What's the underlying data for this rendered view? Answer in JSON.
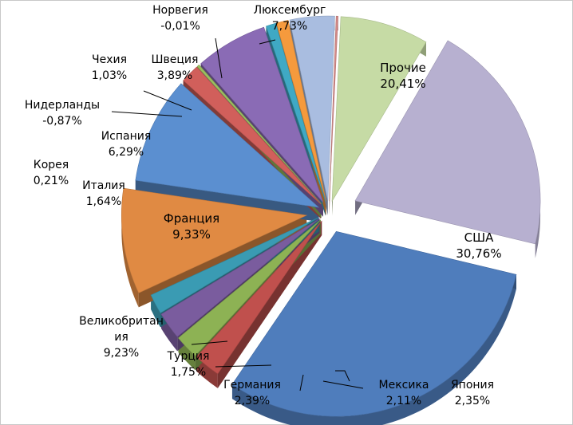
{
  "chart_data": {
    "type": "pie",
    "style": "3d-exploded",
    "title": "",
    "legend": "none",
    "slices": [
      {
        "name": "Прочие",
        "label_lines": [
          "Прочие",
          "20,41%"
        ],
        "value": 20.41,
        "color": "#b7b0d0"
      },
      {
        "name": "США",
        "label_lines": [
          "США",
          "30,76%"
        ],
        "value": 30.76,
        "color": "#4f7dbc"
      },
      {
        "name": "Япония",
        "label_lines": [
          "Япония",
          "2,35%"
        ],
        "value": 2.35,
        "color": "#c0504d"
      },
      {
        "name": "Мексика",
        "label_lines": [
          "Мексика",
          "2,11%"
        ],
        "value": 2.11,
        "color": "#8db254"
      },
      {
        "name": "Германия",
        "label_lines": [
          "Германия",
          "2,39%"
        ],
        "value": 2.39,
        "color": "#7a5c9e"
      },
      {
        "name": "Турция",
        "label_lines": [
          "Турция",
          "1,75%"
        ],
        "value": 1.75,
        "color": "#3a9bb3"
      },
      {
        "name": "Великобритания",
        "label_lines": [
          "Великобритан",
          "ия",
          "9,23%"
        ],
        "value": 9.23,
        "color": "#e08a43"
      },
      {
        "name": "Франция",
        "label_lines": [
          "Франция",
          "9,33%"
        ],
        "value": 9.33,
        "color": "#5b8fd0"
      },
      {
        "name": "Италия",
        "label_lines": [
          "Италия",
          "1,64%"
        ],
        "value": 1.64,
        "color": "#d15f5b"
      },
      {
        "name": "Корея",
        "label_lines": [
          "Корея",
          "0,21%"
        ],
        "value": 0.21,
        "color": "#9bbf5e"
      },
      {
        "name": "Испания",
        "label_lines": [
          "Испания",
          "6,29%"
        ],
        "value": 6.29,
        "color": "#8a6bb5"
      },
      {
        "name": "Нидерланды",
        "label_lines": [
          "Нидерланды",
          "-0,87%"
        ],
        "value": -0.87,
        "color": "#3fa9c4"
      },
      {
        "name": "Чехия",
        "label_lines": [
          "Чехия",
          "1,03%"
        ],
        "value": 1.03,
        "color": "#f59a3d"
      },
      {
        "name": "Швеция",
        "label_lines": [
          "Швеция",
          "3,89%"
        ],
        "value": 3.89,
        "color": "#a9bde0"
      },
      {
        "name": "Норвегия",
        "label_lines": [
          "Норвегия",
          "-0,01%"
        ],
        "value": -0.01,
        "color": "#d48a88"
      },
      {
        "name": "Люксембург",
        "label_lines": [
          "Люксембург",
          "7,73%"
        ],
        "value": 7.73,
        "color": "#c6dba5"
      }
    ]
  }
}
